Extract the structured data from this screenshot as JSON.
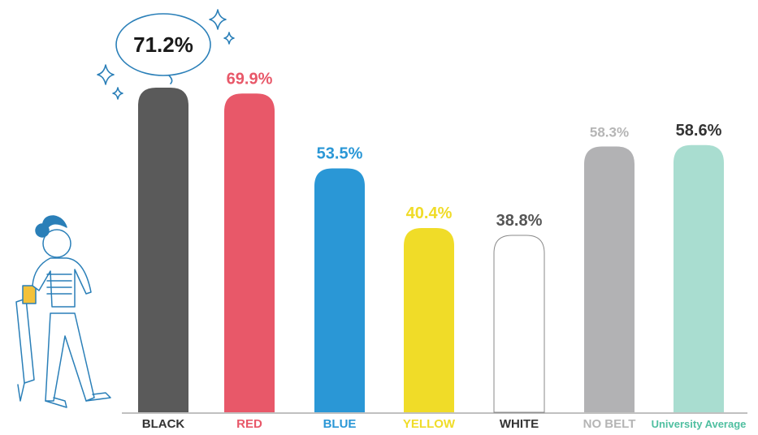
{
  "chart_data": {
    "type": "bar",
    "categories": [
      "BLACK",
      "RED",
      "BLUE",
      "YELLOW",
      "WHITE",
      "NO BELT",
      "University Average"
    ],
    "values": [
      71.2,
      69.9,
      53.5,
      40.4,
      38.8,
      58.3,
      58.6
    ],
    "value_labels": [
      "71.2%",
      "69.9%",
      "53.5%",
      "40.4%",
      "38.8%",
      "58.3%",
      "58.6%"
    ],
    "colors": [
      "#5a5a5a",
      "#e85869",
      "#2a97d6",
      "#f0dc28",
      "#ffffff",
      "#b2b2b4",
      "#a9ddd0"
    ],
    "value_label_colors": [
      "#1a1a1a",
      "#e85869",
      "#2a97d6",
      "#f0dc28",
      "#555555",
      "#b5b5b5",
      "#333333"
    ],
    "category_label_colors": [
      "#333333",
      "#e85869",
      "#2a97d6",
      "#f0dc28",
      "#333333",
      "#b5b5b5",
      "#4fbfa0"
    ]
  }
}
